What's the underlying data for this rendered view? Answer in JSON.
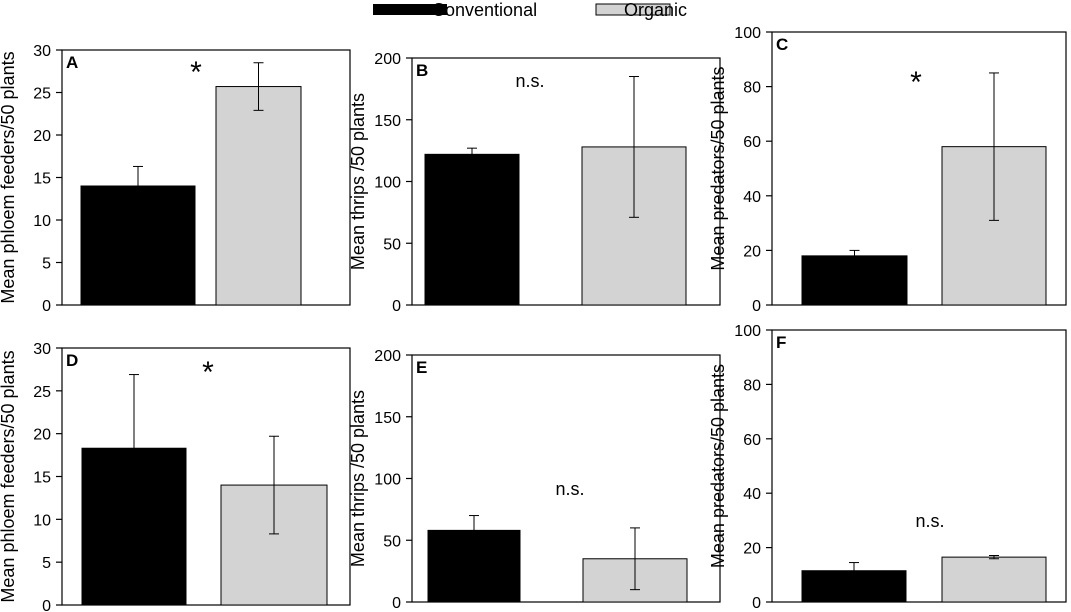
{
  "legend": {
    "items": [
      {
        "label": "Conventional",
        "color": "#000000"
      },
      {
        "label": "Organic",
        "color": "#d3d3d3"
      }
    ]
  },
  "colors": {
    "conventional": "#000000",
    "organic": "#d3d3d3",
    "axis": "#000000"
  },
  "chart_data": [
    {
      "type": "bar",
      "panel": "A",
      "categories": [
        "Conventional",
        "Organic"
      ],
      "values": [
        14,
        25.7
      ],
      "errors": [
        2.3,
        2.8
      ],
      "ylabel": "Mean phloem feeders/50 plants",
      "ylim": [
        0,
        30
      ],
      "yticks": [
        0,
        5,
        10,
        15,
        20,
        25,
        30
      ],
      "annotation": "*"
    },
    {
      "type": "bar",
      "panel": "B",
      "categories": [
        "Conventional",
        "Organic"
      ],
      "values": [
        122,
        128
      ],
      "errors": [
        5,
        57
      ],
      "ylabel": "Mean thrips /50 plants",
      "ylim": [
        0,
        200
      ],
      "yticks": [
        0,
        50,
        100,
        150,
        200
      ],
      "annotation": "n.s."
    },
    {
      "type": "bar",
      "panel": "C",
      "categories": [
        "Conventional",
        "Organic"
      ],
      "values": [
        18,
        58
      ],
      "errors": [
        2,
        27
      ],
      "ylabel": "Mean predators/50 plants",
      "ylim": [
        0,
        100
      ],
      "yticks": [
        0,
        20,
        40,
        60,
        80,
        100
      ],
      "annotation": "*"
    },
    {
      "type": "bar",
      "panel": "D",
      "categories": [
        "Conventional",
        "Organic"
      ],
      "values": [
        18.3,
        14
      ],
      "errors": [
        8.6,
        5.7
      ],
      "ylabel": "Mean phloem feeders/50 plants",
      "ylim": [
        0,
        30
      ],
      "yticks": [
        0,
        5,
        10,
        15,
        20,
        25,
        30
      ],
      "annotation": "*"
    },
    {
      "type": "bar",
      "panel": "E",
      "categories": [
        "Conventional",
        "Organic"
      ],
      "values": [
        58,
        35
      ],
      "errors": [
        12,
        25
      ],
      "ylabel": "Mean thrips /50 plants",
      "ylim": [
        0,
        200
      ],
      "yticks": [
        0,
        50,
        100,
        150,
        200
      ],
      "annotation": "n.s."
    },
    {
      "type": "bar",
      "panel": "F",
      "categories": [
        "Conventional",
        "Organic"
      ],
      "values": [
        11.5,
        16.5
      ],
      "errors": [
        3,
        0.6
      ],
      "ylabel": "Mean predators/50 plants",
      "ylim": [
        0,
        100
      ],
      "yticks": [
        0,
        20,
        40,
        60,
        80,
        100
      ],
      "annotation": "n.s."
    }
  ]
}
